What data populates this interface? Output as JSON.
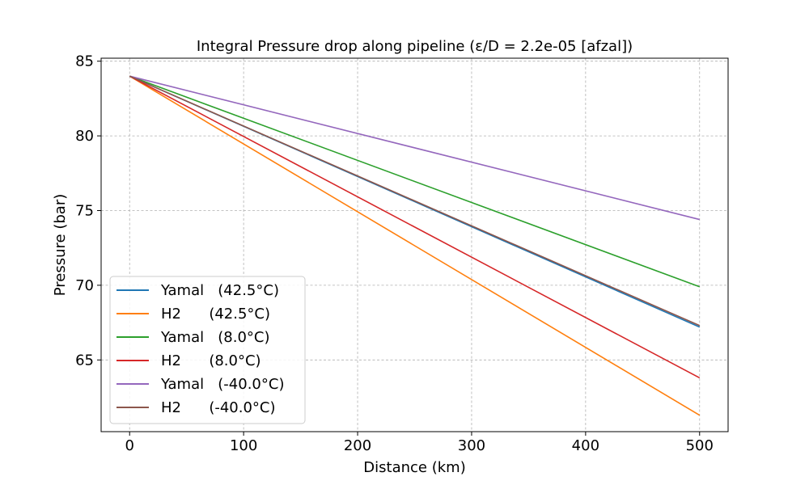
{
  "chart_data": {
    "type": "line",
    "title": "Integral Pressure drop along pipeline (ε/D = 2.2e-05 [afzal])",
    "xlabel": "Distance (km)",
    "ylabel": "Pressure (bar)",
    "xlim": [
      -25,
      525
    ],
    "ylim": [
      60.2,
      85.2
    ],
    "xticks": [
      0,
      100,
      200,
      300,
      400,
      500
    ],
    "yticks": [
      65,
      70,
      75,
      80,
      85
    ],
    "grid": true,
    "grid_style": "dashed",
    "legend_position": "lower-left",
    "x": [
      0,
      500
    ],
    "series": [
      {
        "name": "Yamal   (42.5°C)",
        "color": "#1f77b4",
        "values": [
          84.0,
          67.2
        ]
      },
      {
        "name": "H2      (42.5°C)",
        "color": "#ff7f0e",
        "values": [
          84.0,
          61.3
        ]
      },
      {
        "name": "Yamal   (8.0°C)",
        "color": "#2ca02c",
        "values": [
          84.0,
          69.9
        ]
      },
      {
        "name": "H2      (8.0°C)",
        "color": "#d62728",
        "values": [
          84.0,
          63.8
        ]
      },
      {
        "name": "Yamal   (-40.0°C)",
        "color": "#9467bd",
        "values": [
          84.0,
          74.4
        ]
      },
      {
        "name": "H2      (-40.0°C)",
        "color": "#8c564b",
        "values": [
          84.0,
          67.3
        ]
      }
    ]
  }
}
